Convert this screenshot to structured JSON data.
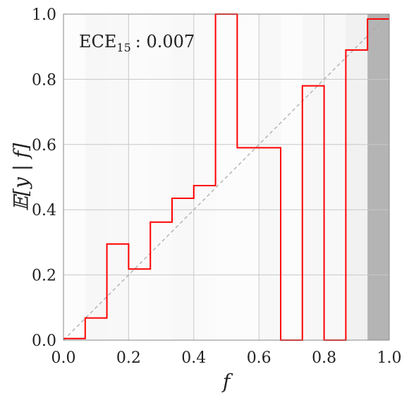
{
  "chart_data": {
    "type": "line",
    "xlabel": "f",
    "ylabel": "𝔼[y | f]",
    "xlim": [
      0.0,
      1.0
    ],
    "ylim": [
      0.0,
      1.0
    ],
    "xticks": [
      "0.0",
      "0.2",
      "0.4",
      "0.6",
      "0.8",
      "1.0"
    ],
    "yticks": [
      "0.0",
      "0.2",
      "0.4",
      "0.6",
      "0.8",
      "1.0"
    ],
    "grid": true,
    "diagonal_reference": true,
    "annotation": {
      "label": "ECE",
      "subscript": "15",
      "value": ": 0.007"
    },
    "bins": {
      "edges": [
        0.0,
        0.0667,
        0.1333,
        0.2,
        0.2667,
        0.3333,
        0.4,
        0.4667,
        0.5333,
        0.6,
        0.6667,
        0.7333,
        0.8,
        0.8667,
        0.9333,
        1.0
      ],
      "calibration": [
        0.005,
        0.068,
        0.295,
        0.218,
        0.362,
        0.435,
        0.474,
        1.0,
        0.59,
        0.59,
        0.0,
        0.78,
        0.0,
        0.89,
        0.985
      ],
      "density": [
        0.02,
        0.06,
        0.05,
        0.03,
        0.04,
        0.05,
        0.04,
        0.02,
        0.02,
        0.05,
        0.02,
        0.06,
        0.05,
        0.1,
        0.55
      ]
    },
    "colors": {
      "curve": "#ff0000",
      "grid": "#c8c8c8",
      "diagonal": "#aaaaaa",
      "hist": "#777777"
    }
  }
}
